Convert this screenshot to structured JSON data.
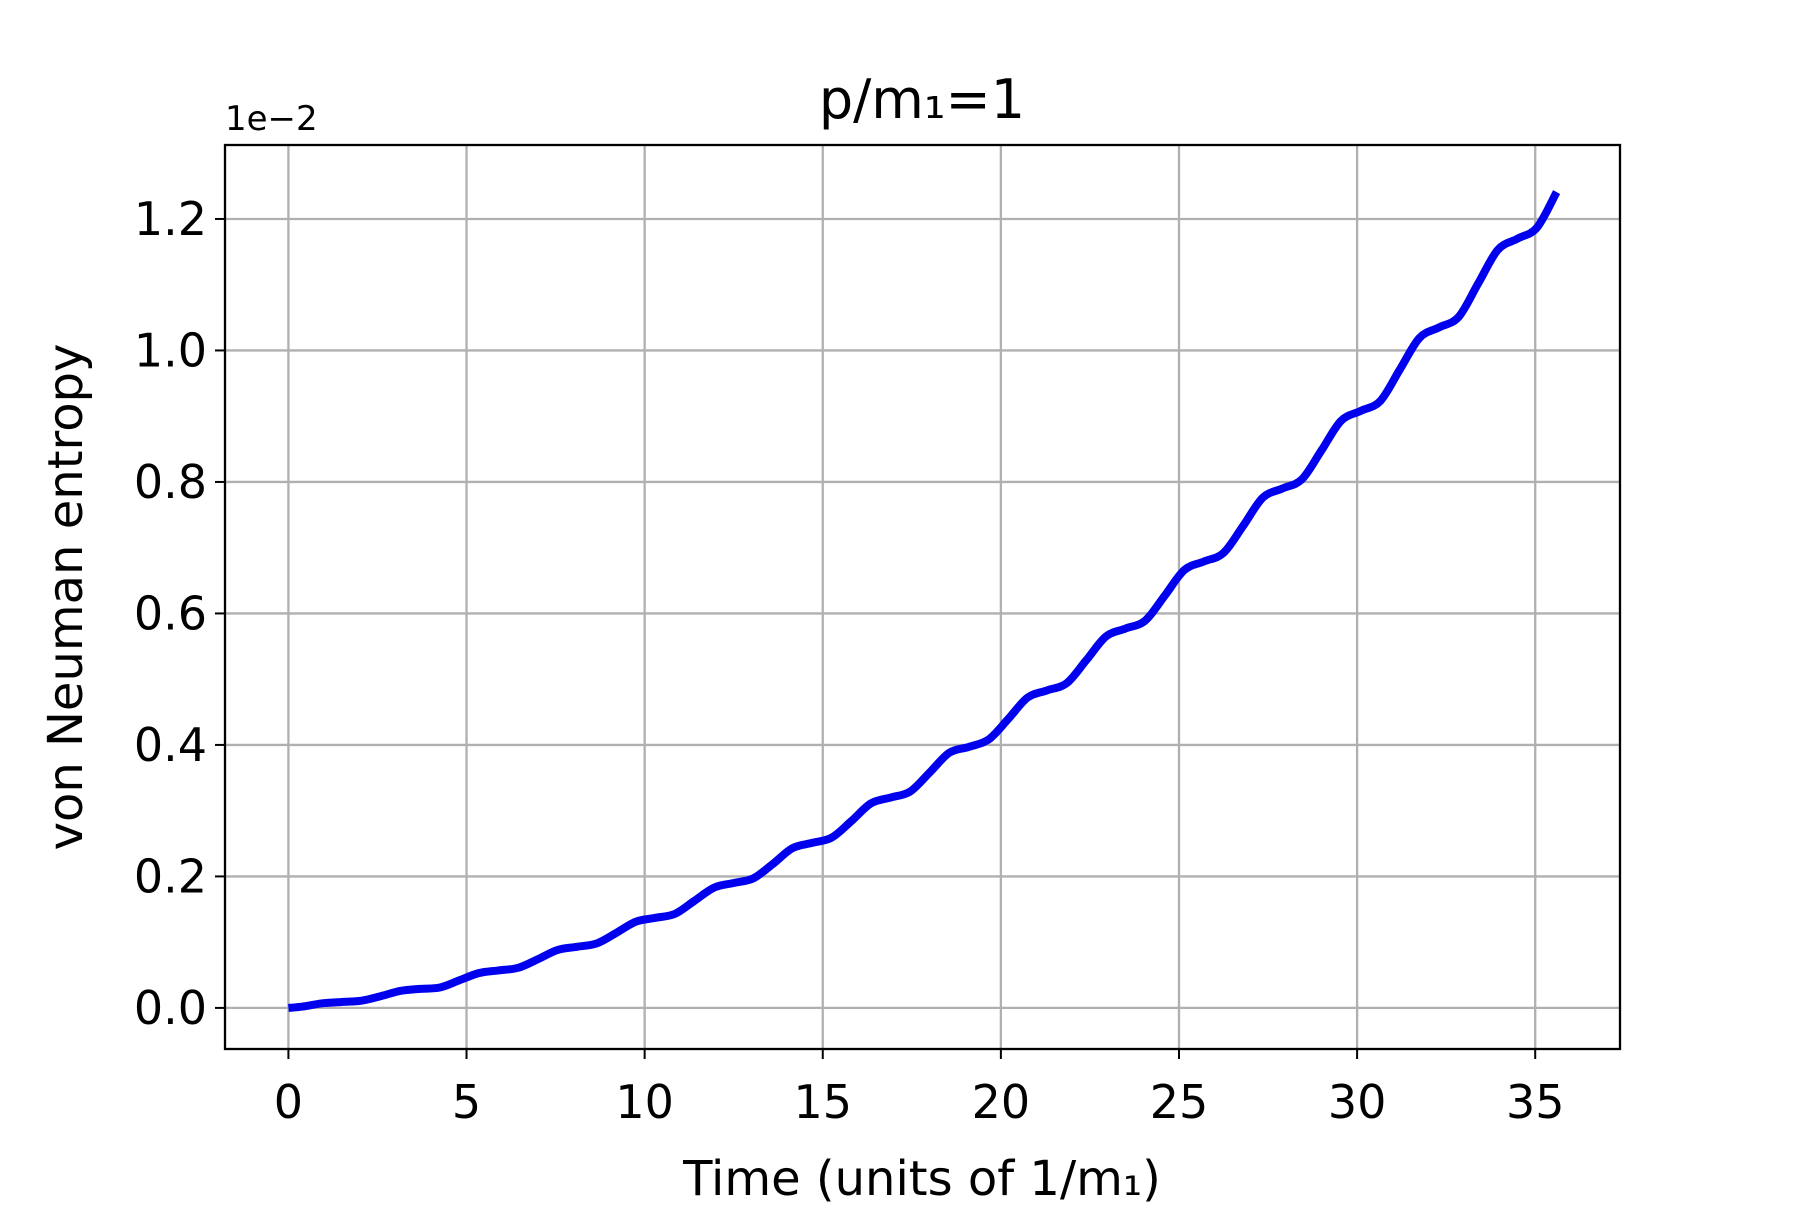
{
  "chart_data": {
    "type": "line",
    "title": "p/m₁=1",
    "x_label": "Time (units of 1/m₁)",
    "y_label": "von Neuman entropy",
    "y_offset_label": "1e−2",
    "x": [
      0,
      0.4,
      0.95,
      1.5,
      2.05,
      2.6,
      3.15,
      3.7,
      4.25,
      4.8,
      5.35,
      5.9,
      6.45,
      7.0,
      7.55,
      8.1,
      8.65,
      9.2,
      9.75,
      10.3,
      10.85,
      11.4,
      11.95,
      12.5,
      13.05,
      13.6,
      14.15,
      14.7,
      15.25,
      15.8,
      16.35,
      16.9,
      17.45,
      18.0,
      18.55,
      19.1,
      19.65,
      20.2,
      20.75,
      21.3,
      21.85,
      22.4,
      22.95,
      23.5,
      24.05,
      24.6,
      25.15,
      25.7,
      26.25,
      26.8,
      27.35,
      27.9,
      28.45,
      29.0,
      29.55,
      30.1,
      30.65,
      31.2,
      31.75,
      32.3,
      32.85,
      33.4,
      33.95,
      34.5,
      35.05,
      35.6
    ],
    "series": [
      {
        "color": "#0000ee",
        "values": [
          0,
          0.002,
          0.007,
          0.009,
          0.011,
          0.018,
          0.026,
          0.029,
          0.031,
          0.042,
          0.053,
          0.057,
          0.061,
          0.074,
          0.088,
          0.093,
          0.098,
          0.114,
          0.131,
          0.137,
          0.143,
          0.163,
          0.183,
          0.19,
          0.197,
          0.219,
          0.243,
          0.251,
          0.259,
          0.284,
          0.311,
          0.32,
          0.329,
          0.358,
          0.388,
          0.397,
          0.408,
          0.439,
          0.472,
          0.483,
          0.494,
          0.529,
          0.565,
          0.577,
          0.589,
          0.627,
          0.666,
          0.679,
          0.692,
          0.733,
          0.776,
          0.79,
          0.804,
          0.848,
          0.893,
          0.908,
          0.923,
          0.971,
          1.019,
          1.035,
          1.051,
          1.102,
          1.153,
          1.17,
          1.187,
          1.241
        ]
      }
    ],
    "xlim": [
      -1.78,
      37.38
    ],
    "ylim": [
      -0.0625,
      1.3125
    ],
    "xticks": [
      0,
      5,
      10,
      15,
      20,
      25,
      30,
      35
    ],
    "yticks": [
      {
        "value": 0,
        "label": "0.0"
      },
      0.2,
      0.4,
      0.6,
      0.8,
      {
        "value": 1,
        "label": "1.0"
      },
      1.2
    ],
    "grid": true
  }
}
